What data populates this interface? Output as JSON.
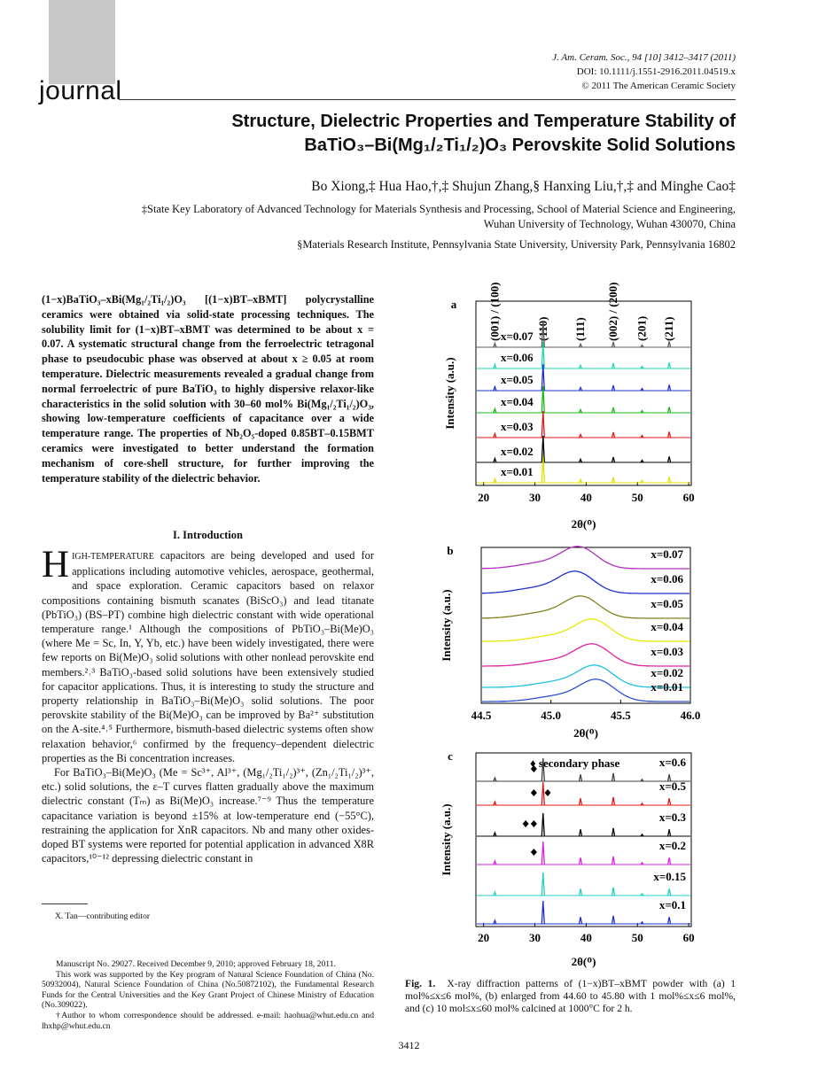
{
  "header": {
    "logo_text": "journal",
    "citation": [
      "J. Am. Ceram. Soc., 94 [10] 3412–3417 (2011)",
      "DOI: 10.1111/j.1551-2916.2011.04519.x",
      "© 2011 The American Ceramic Society"
    ]
  },
  "title": [
    "Structure, Dielectric Properties and Temperature Stability of",
    "BaTiO₃–Bi(Mg₁/₂Ti₁/₂)O₃ Perovskite Solid Solutions"
  ],
  "authors": "Bo Xiong,‡ Hua Hao,†,‡ Shujun Zhang,§ Hanxing Liu,†,‡ and Minghe Cao‡",
  "affiliations": [
    "‡State Key Laboratory of Advanced Technology for Materials Synthesis and Processing, School of Material Science and Engineering, Wuhan University of Technology, Wuhan 430070, China",
    "§Materials Research Institute, Pennsylvania State University, University Park, Pennsylvania 16802"
  ],
  "abstract": "(1−x)BaTiO₃–xBi(Mg₁/₂Ti₁/₂)O₃ [(1−x)BT–xBMT] polycrystalline ceramics were obtained via solid-state processing techniques. The solubility limit for (1−x)BT–xBMT was determined to be about x = 0.07. A systematic structural change from the ferroelectric tetragonal phase to pseudocubic phase was observed at about x ≥ 0.05 at room temperature. Dielectric measurements revealed a gradual change from normal ferroelectric of pure BaTiO₃ to highly dispersive relaxor-like characteristics in the solid solution with 30–60 mol% Bi(Mg₁/₂Ti₁/₂)O₃, showing low-temperature coefficients of capacitance over a wide temperature range. The properties of Nb₂O₅-doped 0.85BT–0.15BMT ceramics were investigated to better understand the formation mechanism of core-shell structure, for further improving the temperature stability of the dielectric behavior.",
  "introduction": {
    "heading": "I.  Introduction",
    "drop_cap": "H",
    "small_caps": "IGH-TEMPERATURE",
    "paragraphs": [
      " capacitors are being developed and used for applications including automotive vehicles, aerospace, geothermal, and space exploration. Ceramic capacitors based on relaxor compositions containing bismuth scanates (BiScO₃) and lead titanate (PbTiO₃) (BS–PT) combine high dielectric constant with wide operational temperature range.¹ Although the compositions of PbTiO₃–Bi(Me)O₃ (where Me = Sc, In, Y, Yb, etc.) have been widely investigated, there were few reports on Bi(Me)O₃ solid solutions with other nonlead perovskite end members.²˒³ BaTiO₃-based solid solutions have been extensively studied for capacitor applications. Thus, it is interesting to study the structure and property relationship in BaTiO₃–Bi(Me)O₃ solid solutions. The poor perovskite stability of the Bi(Me)O₃ can be improved by Ba²⁺ substitution on the A-site.⁴˒⁵ Furthermore, bismuth-based dielectric systems often show relaxation behavior,⁶ confirmed by the frequency–dependent dielectric properties as the Bi concentration increases.",
      "For BaTiO₃–Bi(Me)O₃ (Me = Sc³⁺, Al³⁺, (Mg₁/₂Ti₁/₂)³⁺, (Zn₁/₂Ti₁/₂)³⁺, etc.) solid solutions, the ε–T curves flatten gradually above the maximum dielectric constant (Tₘ) as Bi(Me)O₃ increase.⁷⁻⁹ Thus the temperature capacitance variation is beyond ±15% at low-temperature end (−55°C), restraining the application for XnR capacitors. Nb and many other oxides-doped BT systems were reported for potential application in advanced X8R capacitors,¹⁰⁻¹² depressing dielectric constant in"
    ]
  },
  "editor_note": "X. Tan—contributing editor",
  "footnotes": [
    "Manuscript No. 29027. Received December 9, 2010; approved February 18, 2011.",
    "This work was supported by the Key program of Natural Science Foundation of China (No. 50932004), Natural Science Foundation of China (No.50872102), the Fundamental Research Funds for the Central Universities and the Key Grant Project of Chinese Ministry of Education (No.309022).",
    "†Author to whom correspondence should be addressed. e-mail: haohua@whut.edu.cn and lhxhp@whut.edu.cn"
  ],
  "page_number": "3412",
  "figure": {
    "caption_label": "Fig. 1.",
    "caption_text": "X-ray diffraction patterns of (1−x)BT–xBMT powder with (a) 1 mol%≤x≤6 mol%, (b) enlarged from 44.60 to 45.80 with 1 mol%≤x≤6 mol%, and (c) 10 mol≤x≤60 mol% calcined at 1000°C for 2 h.",
    "panels": [
      {
        "type": "xrd",
        "label": "a",
        "ylabel": "Intensity (a.u.)",
        "xlabel": "2θ(ᴼ)",
        "xlim": [
          18.5,
          60.5
        ],
        "xticks": [
          20,
          30,
          40,
          50,
          60
        ],
        "peaks": [
          22.2,
          31.6,
          38.9,
          45.3,
          50.9,
          56.2
        ],
        "peak_heights": [
          0.15,
          1,
          0.12,
          0.2,
          0.08,
          0.22
        ],
        "peak_labels": [
          "(001) / (100)",
          "(110)",
          "(111)",
          "(002) / (200)",
          "(201)",
          "(211)"
        ],
        "series": [
          {
            "name": "x=0.07",
            "color": "#5a5a5a"
          },
          {
            "name": "x=0.06",
            "color": "#22d6b0"
          },
          {
            "name": "x=0.05",
            "color": "#2030d0"
          },
          {
            "name": "x=0.04",
            "color": "#18b818"
          },
          {
            "name": "x=0.03",
            "color": "#e01818"
          },
          {
            "name": "x=0.02",
            "color": "#000000"
          },
          {
            "name": "x=0.01",
            "color": "#e0e000"
          }
        ]
      },
      {
        "type": "profile",
        "label": "b",
        "ylabel": "Intensity (a.u.)",
        "xlabel": "2θ(ᴼ)",
        "xlim": [
          44.5,
          46.0
        ],
        "xticks": [
          44.5,
          {
            "value": 45,
            "label": "45.0"
          },
          45.5,
          {
            "value": 46,
            "label": "46.0"
          }
        ],
        "series": [
          {
            "name": "x=0.07",
            "color": "#b030c0",
            "peak": 45.2
          },
          {
            "name": "x=0.06",
            "color": "#2030c8",
            "peak": 45.18
          },
          {
            "name": "x=0.05",
            "color": "#808020",
            "peak": 45.22
          },
          {
            "name": "x=0.04",
            "color": "#e8e800",
            "peak": 45.3
          },
          {
            "name": "x=0.03",
            "color": "#e020a0",
            "peak": 45.3
          },
          {
            "name": "x=0.02",
            "color": "#20c0e0",
            "peak": 45.32
          },
          {
            "name": "x=0.01",
            "color": "#3050d0",
            "peak": 45.33
          }
        ]
      },
      {
        "type": "xrd",
        "label": "c",
        "ylabel": "Intensity (a.u.)",
        "xlabel": "2θ(ᴼ)",
        "legend_text": "♦ secondary phase",
        "xlim": [
          18.5,
          60.5
        ],
        "xticks": [
          20,
          30,
          40,
          50,
          60
        ],
        "peaks": [
          22.2,
          31.6,
          38.9,
          45.3,
          50.9,
          56.2
        ],
        "peak_heights": [
          0.15,
          1,
          0.3,
          0.35,
          0.08,
          0.3
        ],
        "series": [
          {
            "name": "x=0.6",
            "color": "#404040",
            "secondary": [
              29.8
            ]
          },
          {
            "name": "x=0.5",
            "color": "#e01818",
            "secondary": [
              29.8,
              32.5
            ]
          },
          {
            "name": "x=0.3",
            "color": "#000000",
            "secondary": [
              28.2,
              29.8
            ]
          },
          {
            "name": "x=0.2",
            "color": "#e020e0",
            "secondary": [
              29.8
            ]
          },
          {
            "name": "x=0.15",
            "color": "#20d0c0",
            "secondary": []
          },
          {
            "name": "x=0.1",
            "color": "#2030d0",
            "secondary": []
          }
        ]
      }
    ]
  }
}
